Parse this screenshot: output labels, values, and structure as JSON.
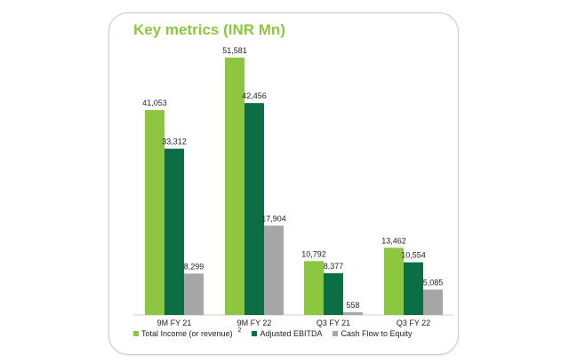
{
  "chart_data": {
    "type": "bar",
    "title": "Key metrics (INR Mn)",
    "categories": [
      "9M FY 21",
      "9M FY 22",
      "Q3 FY 21",
      "Q3 FY 22"
    ],
    "series": [
      {
        "name": "Total Income (or revenue)",
        "values": [
          41053,
          51581,
          10792,
          13462
        ],
        "labels": [
          "41,053",
          "51,581",
          "10,792",
          "13,462"
        ],
        "color": "#8dc63f"
      },
      {
        "name": "Adjusted EBITDA",
        "values": [
          33312,
          42456,
          8377,
          10554
        ],
        "labels": [
          "33,312",
          "42,456",
          "8,377",
          "10,554"
        ],
        "color": "#0b6e45"
      },
      {
        "name": "Cash Flow to Equity",
        "values": [
          8299,
          17904,
          558,
          5085
        ],
        "labels": [
          "8,299",
          "17,904",
          "558",
          "5,085"
        ],
        "color": "#a6a6a6"
      }
    ],
    "legend_footnote": "2",
    "legend_position": "bottom",
    "grid": false,
    "ylim": [
      0,
      60000
    ]
  }
}
